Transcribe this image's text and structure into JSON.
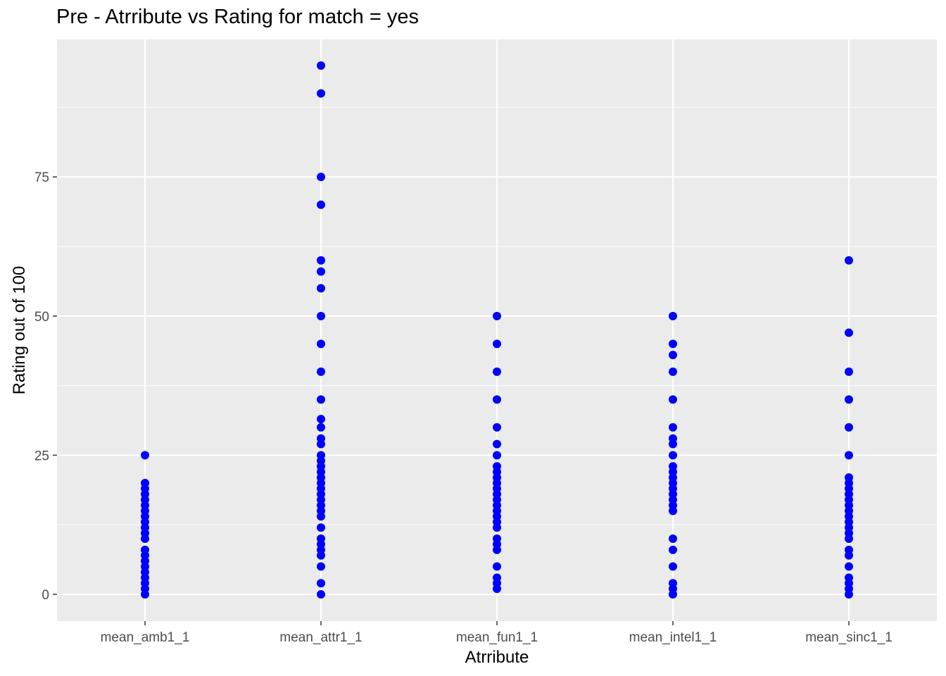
{
  "chart_data": {
    "type": "scatter",
    "title": "Pre - Atrribute vs Rating for match = yes",
    "xlabel": "Atrribute",
    "ylabel": "Rating out of 100",
    "categories": [
      "mean_amb1_1",
      "mean_attr1_1",
      "mean_fun1_1",
      "mean_intel1_1",
      "mean_sinc1_1"
    ],
    "y_ticks": [
      0,
      25,
      50,
      75
    ],
    "y_tick_labels": [
      "0",
      "25",
      "50",
      "75"
    ],
    "ylim": [
      -4.8,
      99.7
    ],
    "grid": true,
    "legend": "none",
    "point_color": "#0000FF",
    "panel_color": "#EBEBEB",
    "grid_color": "#FFFFFF",
    "series": [
      {
        "category": "mean_amb1_1",
        "values": [
          0,
          1,
          2,
          3,
          4,
          5,
          6,
          7,
          8,
          10,
          11,
          12,
          13,
          14,
          15,
          16,
          17,
          18,
          19,
          20,
          25
        ]
      },
      {
        "category": "mean_attr1_1",
        "values": [
          0,
          2,
          5,
          7,
          8,
          9,
          10,
          12,
          14,
          15,
          16,
          17,
          18,
          19,
          20,
          21,
          22,
          23,
          24,
          25,
          27,
          28,
          30,
          31.5,
          35,
          40,
          45,
          50,
          55,
          58,
          60,
          70,
          75,
          90,
          95
        ]
      },
      {
        "category": "mean_fun1_1",
        "values": [
          1,
          2,
          3,
          5,
          8,
          9,
          10,
          12,
          13,
          14,
          15,
          16,
          17,
          18,
          19,
          20,
          21,
          22,
          23,
          25,
          27,
          30,
          35,
          40,
          45,
          50
        ]
      },
      {
        "category": "mean_intel1_1",
        "values": [
          0,
          1,
          2,
          5,
          8,
          10,
          15,
          16,
          17,
          18,
          19,
          20,
          21,
          22,
          23,
          25,
          27,
          28,
          30,
          35,
          40,
          43,
          45,
          50
        ]
      },
      {
        "category": "mean_sinc1_1",
        "values": [
          0,
          1,
          2,
          3,
          5,
          7,
          8,
          10,
          11,
          12,
          13,
          14,
          15,
          16,
          17,
          18,
          19,
          20,
          21,
          25,
          30,
          35,
          40,
          47,
          60
        ]
      }
    ]
  }
}
